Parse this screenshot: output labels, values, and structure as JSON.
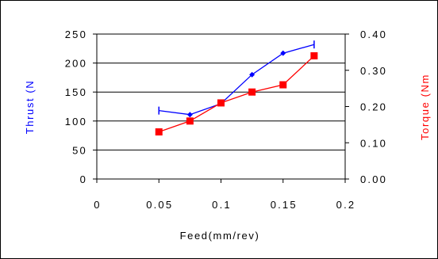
{
  "chart_data": {
    "type": "line",
    "xlabel": "Feed(mm/rev)",
    "ylabel": "Thrust (N",
    "y2label": "Torque (Nm",
    "xlim": [
      0,
      0.2
    ],
    "ylim": [
      0,
      250
    ],
    "y2lim": [
      0,
      0.4
    ],
    "x_ticks": [
      "0",
      "0.05",
      "0.1",
      "0.15",
      "0.2"
    ],
    "y_ticks": [
      "0",
      "50",
      "100",
      "150",
      "200",
      "250"
    ],
    "y2_ticks": [
      "0.00",
      "0.10",
      "0.20",
      "0.30",
      "0.40"
    ],
    "grid": "horizontal",
    "legend": "none",
    "series": [
      {
        "axis": "left",
        "color": "#0000ff",
        "marker": "diamond",
        "x": [
          0.05,
          0.075,
          0.1,
          0.125,
          0.15,
          0.175
        ],
        "values": [
          118,
          111,
          130,
          180,
          217,
          232
        ]
      },
      {
        "axis": "right",
        "color": "#ff0000",
        "marker": "square",
        "x": [
          0.05,
          0.075,
          0.1,
          0.125,
          0.15,
          0.175
        ],
        "values": [
          0.13,
          0.16,
          0.21,
          0.24,
          0.26,
          0.34
        ]
      }
    ]
  }
}
